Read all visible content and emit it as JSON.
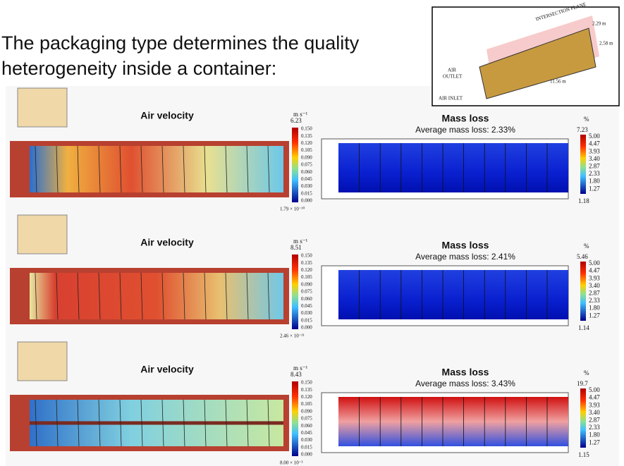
{
  "header": {
    "title": [
      "The packaging type determines the quality",
      "heterogeneity inside a container:"
    ]
  },
  "inset": {
    "plane": "INTERSECTION PLANE",
    "width": "2.29 m",
    "height": "2.58 m",
    "length": "11.56 m",
    "outlet": [
      "AIR",
      "OUTLET"
    ],
    "inlet": "AIR INLET"
  },
  "rows": [
    {
      "velocity": {
        "title": "Air velocity",
        "unit": "m s⁻¹",
        "max": "6.23",
        "ticks": [
          "0.150",
          "0.135",
          "0.120",
          "0.105",
          "0.090",
          "0.075",
          "0.060",
          "0.045",
          "0.030",
          "0.015",
          "0.000"
        ],
        "min": "1.79 × 10⁻¹⁰"
      },
      "mass": {
        "title": "Mass loss",
        "subtitle": "Average mass loss: 2.33%",
        "unit": "%",
        "max": "7.23",
        "ticks": [
          "5.00",
          "4.47",
          "3.93",
          "3.40",
          "2.87",
          "2.33",
          "1.80",
          "1.27"
        ],
        "min": "1.18"
      }
    },
    {
      "velocity": {
        "title": "Air velocity",
        "unit": "m s⁻¹",
        "max": "8.51",
        "ticks": [
          "0.150",
          "0.135",
          "0.120",
          "0.105",
          "0.090",
          "0.075",
          "0.060",
          "0.045",
          "0.030",
          "0.015",
          "0.000"
        ],
        "min": "2.46 × 10⁻¹¹"
      },
      "mass": {
        "title": "Mass loss",
        "subtitle": "Average mass loss: 2.41%",
        "unit": "%",
        "max": "5.46",
        "ticks": [
          "5.00",
          "4.47",
          "3.93",
          "3.40",
          "2.87",
          "2.33",
          "1.80",
          "1.27"
        ],
        "min": "1.14"
      }
    },
    {
      "velocity": {
        "title": "Air velocity",
        "unit": "m s⁻¹",
        "max": "8.43",
        "ticks": [
          "0.150",
          "0.135",
          "0.120",
          "0.105",
          "0.090",
          "0.075",
          "0.060",
          "0.045",
          "0.030",
          "0.015",
          "0.000"
        ],
        "min": "8.00 × 10⁻³"
      },
      "mass": {
        "title": "Mass loss",
        "subtitle": "Average mass loss: 3.43%",
        "unit": "%",
        "max": "19.7",
        "ticks": [
          "5.00",
          "4.47",
          "3.93",
          "3.40",
          "2.87",
          "2.33",
          "1.80",
          "1.27"
        ],
        "min": "1.15"
      }
    }
  ]
}
